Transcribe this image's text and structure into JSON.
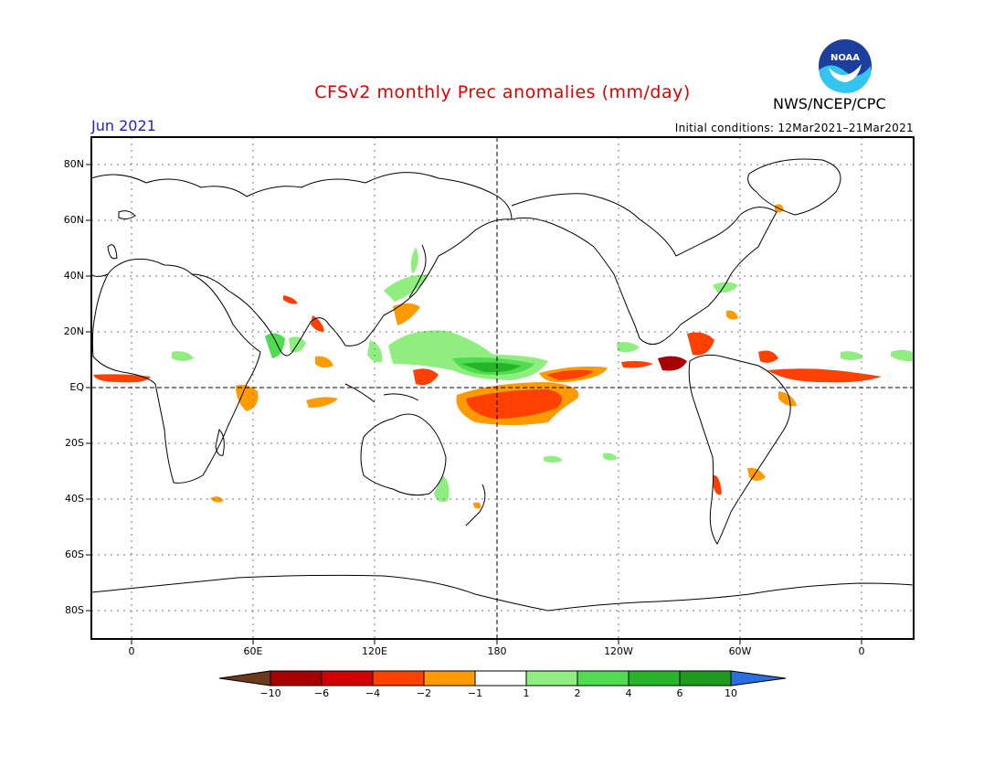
{
  "header": {
    "title": "CFSv2 monthly Prec anomalies (mm/day)",
    "period": "Jun 2021",
    "initial_conditions": "Initial conditions: 12Mar2021–21Mar2021",
    "agency": "NWS/NCEP/CPC",
    "logo_text": "NOAA"
  },
  "map": {
    "lat_ticks": [
      "80N",
      "60N",
      "40N",
      "20N",
      "EQ",
      "20S",
      "40S",
      "60S",
      "80S"
    ],
    "lon_ticks": [
      "0",
      "60E",
      "120E",
      "180",
      "120W",
      "60W",
      "0"
    ]
  },
  "colorbar": {
    "labels": [
      "−10",
      "−6",
      "−4",
      "−2",
      "−1",
      "1",
      "2",
      "4",
      "6",
      "10"
    ],
    "colors": [
      "#6b3a1a",
      "#a80000",
      "#d20000",
      "#ff4000",
      "#ff9b00",
      "#ffffff",
      "#90ee80",
      "#50dc50",
      "#28b428",
      "#1e9a1e",
      "#2a6fe0"
    ]
  }
}
